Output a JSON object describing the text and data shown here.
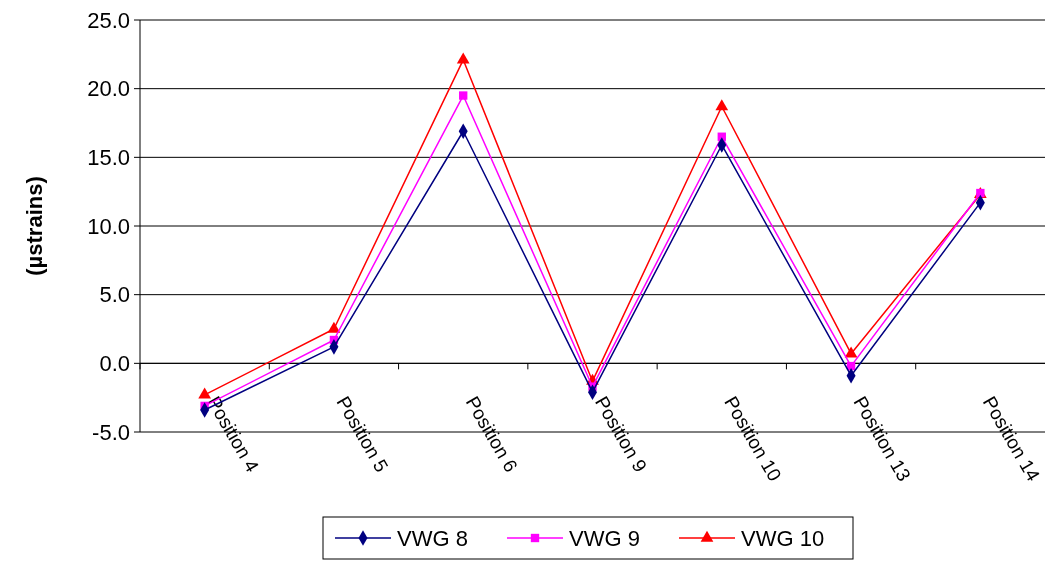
{
  "chart_data": {
    "type": "line",
    "ylabel": "(µstrains)",
    "categories": [
      "Position 4",
      "Position 5",
      "Position 6",
      "Position 9",
      "Position 10",
      "Position 13",
      "Position 14"
    ],
    "series": [
      {
        "name": "VWG 8",
        "color": "#000080",
        "marker": "diamond",
        "values": [
          -3.4,
          1.2,
          16.9,
          -2.1,
          15.9,
          -0.9,
          11.7
        ]
      },
      {
        "name": "VWG 9",
        "color": "#ff00ff",
        "marker": "square",
        "values": [
          -3.1,
          1.7,
          19.5,
          -1.7,
          16.5,
          -0.2,
          12.4
        ]
      },
      {
        "name": "VWG 10",
        "color": "#ff0000",
        "marker": "triangle",
        "values": [
          -2.3,
          2.5,
          22.1,
          -1.3,
          18.7,
          0.7,
          12.3
        ]
      }
    ],
    "ylim": [
      -5,
      25
    ],
    "yticks": [
      {
        "value": -5,
        "label": "-5.0"
      },
      {
        "value": 0,
        "label": "0.0"
      },
      {
        "value": 5,
        "label": "5.0"
      },
      {
        "value": 10,
        "label": "10.0"
      },
      {
        "value": 15,
        "label": "15.0"
      },
      {
        "value": 20,
        "label": "20.0"
      },
      {
        "value": 25,
        "label": "25.0"
      }
    ],
    "grid": "y",
    "legend": "bottom",
    "line_style": "solid"
  }
}
